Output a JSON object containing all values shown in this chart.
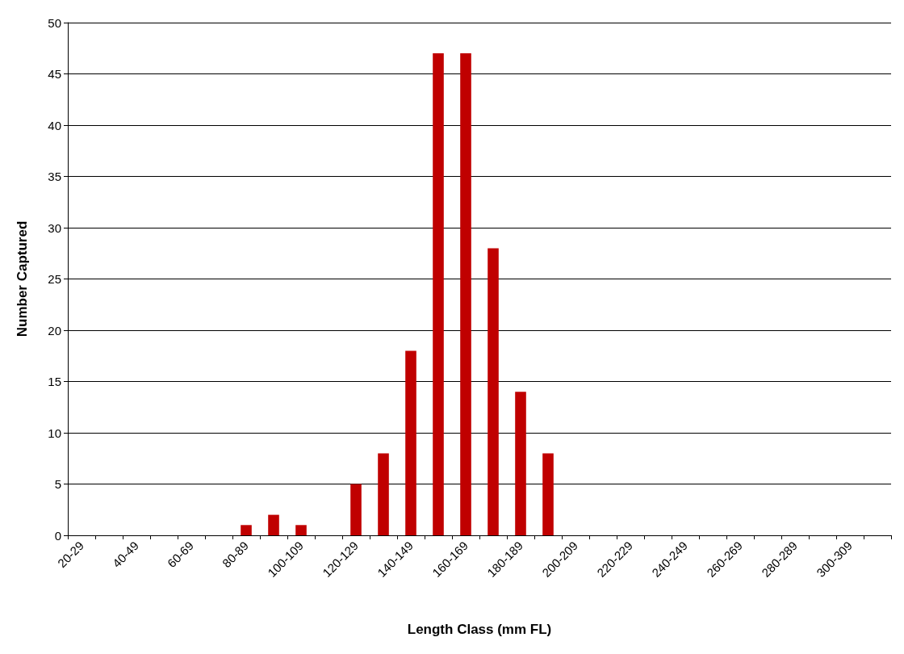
{
  "chart_data": {
    "type": "bar",
    "xlabel": "Length Class (mm FL)",
    "ylabel": "Number Captured",
    "categories": [
      "20-29",
      null,
      "40-49",
      null,
      "60-69",
      null,
      "80-89",
      null,
      "100-109",
      null,
      "120-129",
      null,
      "140-149",
      null,
      "160-169",
      null,
      "180-189",
      null,
      "200-209",
      null,
      "220-229",
      null,
      "240-249",
      null,
      "260-269",
      null,
      "280-289",
      null,
      "300-309",
      null
    ],
    "values": [
      0,
      0,
      0,
      0,
      0,
      0,
      1,
      2,
      1,
      0,
      5,
      8,
      18,
      47,
      47,
      28,
      14,
      8,
      0,
      0,
      0,
      0,
      0,
      0,
      0,
      0,
      0,
      0,
      0,
      0
    ],
    "color": "#c00000",
    "ylim": [
      0,
      50
    ],
    "yticks": [
      0,
      5,
      10,
      15,
      20,
      25,
      30,
      35,
      40,
      45,
      50
    ],
    "grid": "y"
  }
}
